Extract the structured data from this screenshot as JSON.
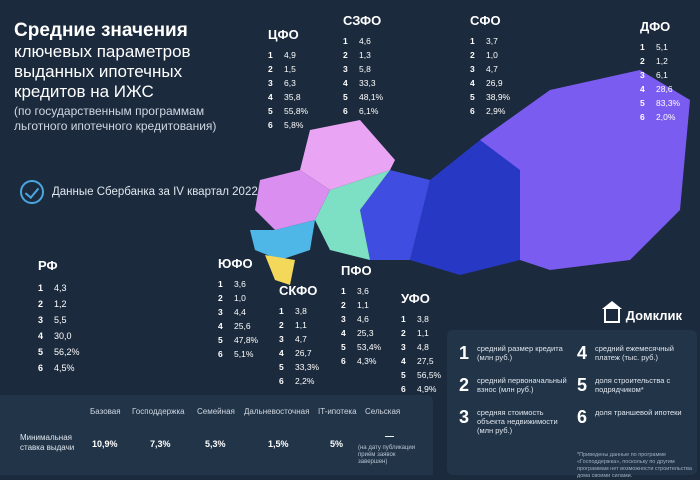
{
  "title": {
    "line1": "Средние значения",
    "line2": "ключевых параметров выданных ипотечных кредитов на ИЖС",
    "line3": "(по государственным программам льготного ипотечного кредитования)"
  },
  "source": "Данные Сбербанка за IV квартал 2022 года",
  "brand": "Домклик",
  "regions": [
    {
      "name": "ЦФО",
      "values": [
        "4,9",
        "1,5",
        "6,3",
        "35,8",
        "55,8%",
        "5,8%"
      ]
    },
    {
      "name": "СЗФО",
      "values": [
        "4,6",
        "1,3",
        "5,8",
        "33,3",
        "48,1%",
        "6,1%"
      ]
    },
    {
      "name": "СФО",
      "values": [
        "3,7",
        "1,0",
        "4,7",
        "26,9",
        "38,9%",
        "2,9%"
      ]
    },
    {
      "name": "ДФО",
      "values": [
        "5,1",
        "1,2",
        "6,1",
        "28,6",
        "83,3%",
        "2,0%"
      ]
    },
    {
      "name": "ЮФО",
      "values": [
        "3,6",
        "1,0",
        "4,4",
        "25,6",
        "47,8%",
        "5,1%"
      ]
    },
    {
      "name": "СКФО",
      "values": [
        "3,8",
        "1,1",
        "4,7",
        "26,7",
        "33,3%",
        "2,2%"
      ]
    },
    {
      "name": "ПФО",
      "values": [
        "3,6",
        "1,1",
        "4,6",
        "25,3",
        "53,4%",
        "4,3%"
      ]
    },
    {
      "name": "УФО",
      "values": [
        "3,8",
        "1,1",
        "4,8",
        "27,5",
        "56,5%",
        "4,9%"
      ]
    }
  ],
  "rf": {
    "name": "РФ",
    "values": [
      "4,3",
      "1,2",
      "5,5",
      "30,0",
      "56,2%",
      "4,5%"
    ]
  },
  "legend": [
    {
      "num": "1",
      "text": "средний размер кредита (млн руб.)"
    },
    {
      "num": "2",
      "text": "средний первоначальный взнос (млн руб.)"
    },
    {
      "num": "3",
      "text": "средняя стоимость объекта недвижимости (млн руб.)"
    },
    {
      "num": "4",
      "text": "средний ежемесячный платеж (тыс. руб.)"
    },
    {
      "num": "5",
      "text": "доля строительства с подрядчиком*"
    },
    {
      "num": "6",
      "text": "доля траншевой ипотеки"
    }
  ],
  "legend_note": "*Приведены данные по программе «Господдержка», поскольку по другим программам нет возможности строительства дома своими силами.",
  "table": {
    "row_label": "Минимальная ставка выдачи",
    "columns": [
      "Базовая",
      "Господдержка",
      "Семейная",
      "Дальневосточная",
      "IT-ипотека",
      "Сельская"
    ],
    "values": [
      "10,9%",
      "7,3%",
      "5,3%",
      "1,5%",
      "5%",
      "—"
    ],
    "note": "(на дату публикации приём заявок завершен)"
  },
  "map_colors": {
    "cfo": "#d98ef0",
    "szfo": "#e9a5f3",
    "yufo": "#4fb7e8",
    "skfo": "#f3d85a",
    "pfo": "#7de0c4",
    "ufo": "#3f4ee0",
    "sfo": "#2738c4",
    "dfo": "#7b5cf0"
  }
}
